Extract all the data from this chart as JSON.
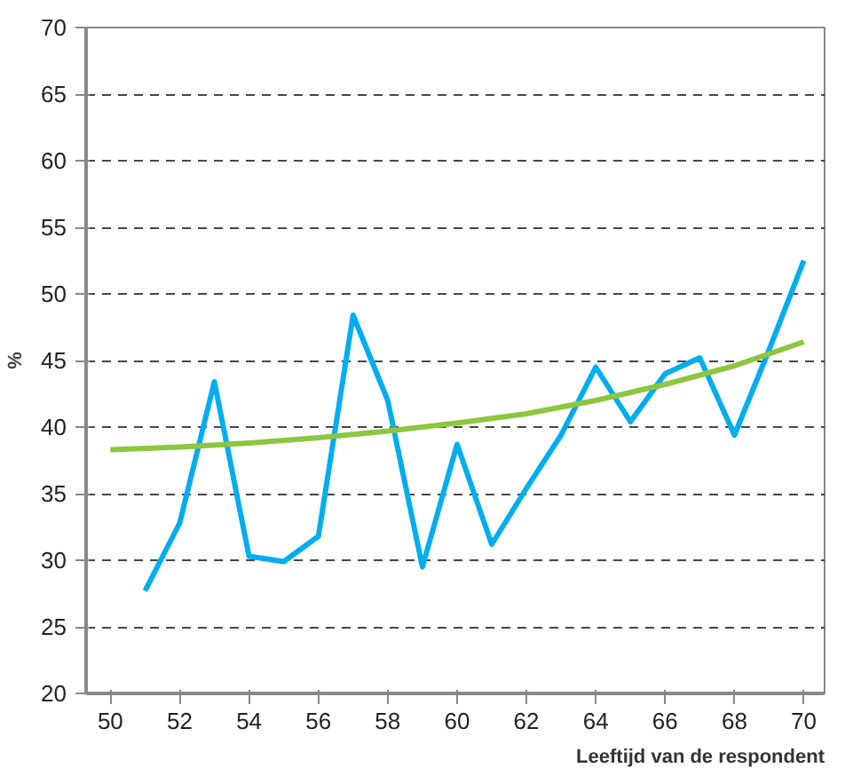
{
  "chart_data": {
    "type": "line",
    "xlabel": "Leeftijd van de respondent",
    "ylabel": "%",
    "xlim": [
      49.3,
      70.6
    ],
    "ylim": [
      20,
      70
    ],
    "xticks": [
      50,
      52,
      54,
      56,
      58,
      60,
      62,
      64,
      66,
      68,
      70
    ],
    "yticks": [
      20,
      25,
      30,
      35,
      40,
      45,
      50,
      55,
      60,
      65,
      70
    ],
    "grid": "y",
    "series": [
      {
        "color": "#00aeef",
        "x": [
          51,
          52,
          53,
          54,
          55,
          56,
          57,
          58,
          59,
          60,
          61,
          62,
          63,
          64,
          65,
          66,
          67,
          68,
          69,
          70
        ],
        "values": [
          27.7,
          32.8,
          43.4,
          30.3,
          29.9,
          31.8,
          48.4,
          42.0,
          29.5,
          38.7,
          31.2,
          35.4,
          39.4,
          44.5,
          40.4,
          44.0,
          45.2,
          39.4,
          45.8,
          52.5
        ]
      },
      {
        "color": "#8dc63f",
        "x": [
          50,
          52,
          54,
          56,
          58,
          60,
          62,
          64,
          66,
          68,
          70
        ],
        "values": [
          38.3,
          38.5,
          38.8,
          39.2,
          39.7,
          40.3,
          41.0,
          42.0,
          43.2,
          44.6,
          46.4
        ]
      }
    ]
  }
}
